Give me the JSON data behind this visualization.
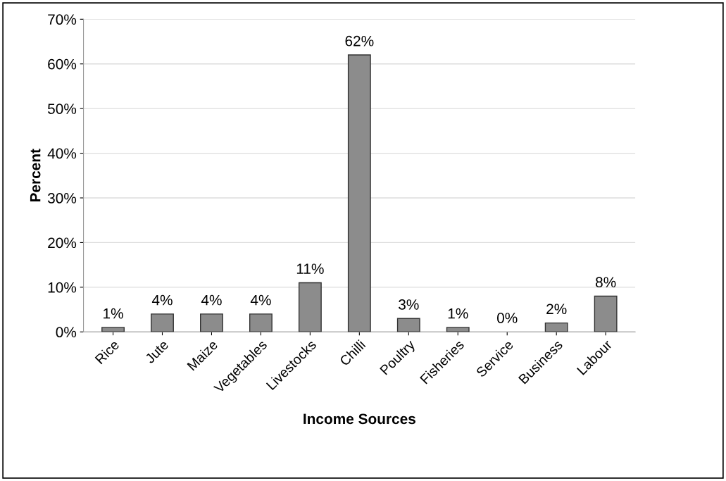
{
  "chart_data": {
    "type": "bar",
    "xlabel": "Income Sources",
    "ylabel": "Percent",
    "categories": [
      "Rice",
      "Jute",
      "Maize",
      "Vegetables",
      "Livestocks",
      "Chilli",
      "Poultry",
      "Fisheries",
      "Service",
      "Business",
      "Labour"
    ],
    "values": [
      1,
      4,
      4,
      4,
      11,
      62,
      3,
      1,
      0,
      2,
      8
    ],
    "value_labels": [
      "1%",
      "4%",
      "4%",
      "4%",
      "11%",
      "62%",
      "3%",
      "1%",
      "0%",
      "2%",
      "8%"
    ],
    "color": "#8c8c8c",
    "ylim": [
      0,
      70
    ],
    "yticks": [
      {
        "value": 0,
        "label": "0%"
      },
      {
        "value": 10,
        "label": "10%"
      },
      {
        "value": 20,
        "label": "20%"
      },
      {
        "value": 30,
        "label": "30%"
      },
      {
        "value": 40,
        "label": "40%"
      },
      {
        "value": 50,
        "label": "50%"
      },
      {
        "value": 60,
        "label": "60%"
      },
      {
        "value": 70,
        "label": "70%"
      }
    ],
    "grid": "y"
  }
}
